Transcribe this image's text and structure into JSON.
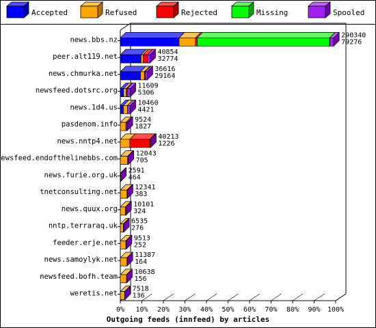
{
  "legend": [
    {
      "label": "Accepted",
      "color": "#0000ff",
      "top": "#5050ff",
      "side": "#0000a8"
    },
    {
      "label": "Refused",
      "color": "#ffa500",
      "top": "#ffc450",
      "side": "#b07000"
    },
    {
      "label": "Rejected",
      "color": "#ff0000",
      "top": "#ff5050",
      "side": "#b00000"
    },
    {
      "label": "Missing",
      "color": "#00ff00",
      "top": "#60ff60",
      "side": "#00a800"
    },
    {
      "label": "Spooled",
      "color": "#a020f0",
      "top": "#c060ff",
      "side": "#7000b0"
    }
  ],
  "chart_data": {
    "type": "bar",
    "orientation": "horizontal",
    "stacked": true,
    "title": "Outgoing feeds (innfeed) by articles",
    "xlim": [
      0,
      100
    ],
    "x_ticks": [
      "0%",
      "10%",
      "20%",
      "30%",
      "40%",
      "50%",
      "60%",
      "70%",
      "80%",
      "90%",
      "100%"
    ],
    "categories": [
      "news.bbs.nz",
      "peer.alt119.net",
      "news.chmurka.net",
      "newsfeed.dotsrc.org",
      "news.1d4.us",
      "pasdenom.info",
      "news.nntp4.net",
      "newsfeed.endofthelinebbs.com",
      "news.furie.org.uk",
      "tnetconsulting.net",
      "news.quux.org",
      "nntp.terraraq.uk",
      "feeder.erje.net",
      "news.samoylyk.net",
      "newsfeed.bofh.team",
      "weretis.net"
    ],
    "top_values": [
      290340,
      40854,
      36616,
      11609,
      10460,
      9524,
      40213,
      12043,
      2591,
      12341,
      10101,
      6535,
      9513,
      11387,
      10638,
      7518
    ],
    "bottom_values": [
      79276,
      32774,
      29164,
      5306,
      4421,
      1827,
      1226,
      705,
      464,
      383,
      324,
      276,
      252,
      164,
      156,
      136
    ],
    "series": [
      {
        "name": "Accepted",
        "values": [
          27.3,
          9.6,
          9.4,
          1.5,
          1.4,
          0,
          0,
          0,
          0,
          0,
          0,
          0,
          0,
          0,
          0,
          0
        ]
      },
      {
        "name": "Refused",
        "values": [
          7.6,
          1.0,
          1.8,
          1.3,
          1.9,
          2.6,
          4.4,
          3.4,
          0,
          3.1,
          2.4,
          1.4,
          2.6,
          3.1,
          2.9,
          2.0
        ]
      },
      {
        "name": "Rejected",
        "values": [
          0.8,
          2.0,
          0.3,
          0.4,
          0,
          0,
          9.3,
          0,
          0,
          0,
          0,
          0,
          0,
          0,
          0,
          0
        ]
      },
      {
        "name": "Missing",
        "values": [
          61.5,
          0,
          0,
          0,
          0,
          0,
          0,
          0,
          0,
          0,
          0,
          0,
          0,
          0,
          0,
          0
        ]
      },
      {
        "name": "Spooled",
        "values": [
          1.9,
          1.2,
          1.0,
          1.4,
          1.3,
          0.6,
          0.4,
          0.3,
          0.2,
          0.2,
          0.2,
          0.2,
          0.2,
          0.1,
          0.1,
          0.1
        ]
      }
    ],
    "grid": false,
    "legend_position": "top"
  }
}
